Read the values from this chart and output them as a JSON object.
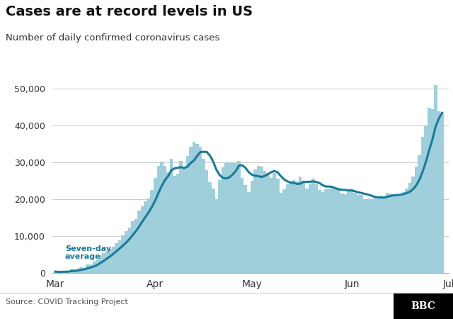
{
  "title": "Cases are at record levels in US",
  "subtitle": "Number of daily confirmed coronavirus cases",
  "source": "Source: COVID Tracking Project",
  "bar_color": "#9ecfda",
  "line_color": "#1a7a9a",
  "annotation_color": "#1a7a9a",
  "annotation_text": "Seven-day\naverage",
  "background_color": "#ffffff",
  "ylim": [
    0,
    55000
  ],
  "yticks": [
    0,
    10000,
    20000,
    30000,
    40000,
    50000
  ],
  "daily_cases": [
    313,
    175,
    280,
    340,
    397,
    1121,
    846,
    1076,
    1475,
    1332,
    2174,
    2183,
    2953,
    3509,
    4835,
    5374,
    5745,
    6509,
    7123,
    8016,
    8789,
    10164,
    11236,
    12226,
    13963,
    14621,
    16797,
    18058,
    19452,
    20071,
    22552,
    25665,
    29025,
    30114,
    28958,
    27376,
    30845,
    26373,
    26814,
    30303,
    28288,
    31731,
    34196,
    35527,
    35063,
    34196,
    30922,
    27938,
    24622,
    22878,
    20011,
    25237,
    28553,
    29916,
    29971,
    30037,
    29764,
    30311,
    25686,
    23754,
    21862,
    24891,
    28023,
    29001,
    28825,
    27748,
    27065,
    25706,
    27020,
    25532,
    21721,
    22615,
    23996,
    24836,
    25241,
    24791,
    26131,
    25022,
    22861,
    24093,
    25521,
    24204,
    22547,
    21885,
    22756,
    22862,
    23272,
    22961,
    22453,
    21527,
    21321,
    22048,
    22820,
    21607,
    21174,
    21068,
    19877,
    20093,
    19985,
    20697,
    20468,
    20908,
    20714,
    21627,
    21534,
    21379,
    20830,
    21291,
    21869,
    22818,
    24321,
    26070,
    28893,
    31877,
    36816,
    39972,
    44831,
    44438,
    51000,
    43825,
    43200
  ],
  "month_labels": [
    "Mar",
    "Apr",
    "May",
    "Jun",
    "Jul"
  ],
  "month_positions": [
    0,
    31,
    61,
    92,
    122
  ]
}
